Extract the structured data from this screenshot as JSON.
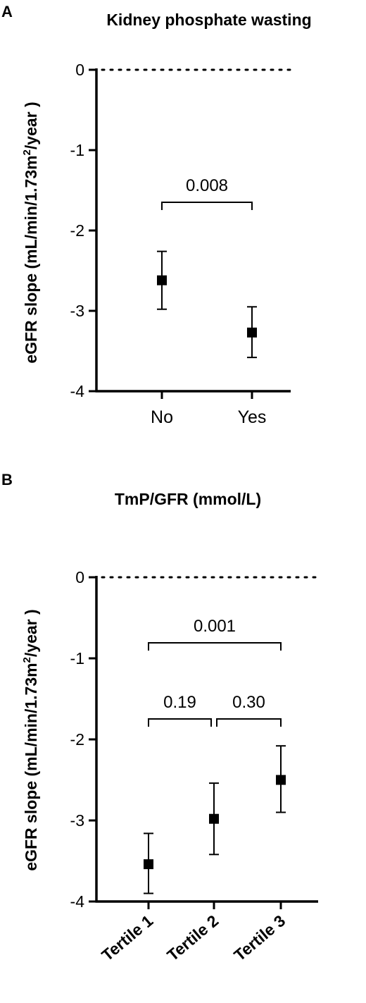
{
  "chart_data": [
    {
      "type": "scatter",
      "panel": "A",
      "title": "Kidney phosphate wasting",
      "ylabel": "eGFR slope (mL/min/1.73m²/year )",
      "ylim": [
        -4,
        0
      ],
      "yticks": [
        0,
        -1,
        -2,
        -3,
        -4
      ],
      "reference_line": 0,
      "categories": [
        "No",
        "Yes"
      ],
      "series": [
        {
          "values": [
            -2.62,
            -3.27
          ],
          "ci_low": [
            -2.98,
            -3.58
          ],
          "ci_high": [
            -2.26,
            -2.95
          ]
        }
      ],
      "comparisons": [
        {
          "from": 0,
          "to": 1,
          "label": "0.008"
        }
      ]
    },
    {
      "type": "scatter",
      "panel": "B",
      "title": "TmP/GFR (mmol/L)",
      "ylabel": "eGFR slope (mL/min/1.73m²/year )",
      "ylim": [
        -4,
        0
      ],
      "yticks": [
        0,
        -1,
        -2,
        -3,
        -4
      ],
      "reference_line": 0,
      "categories": [
        "Tertile 1",
        "Tertile 2",
        "Tertile 3"
      ],
      "series": [
        {
          "values": [
            -3.54,
            -2.98,
            -2.5
          ],
          "ci_low": [
            -3.9,
            -3.42,
            -2.9
          ],
          "ci_high": [
            -3.16,
            -2.54,
            -2.08
          ]
        }
      ],
      "comparisons": [
        {
          "from": 0,
          "to": 1,
          "label": "0.19"
        },
        {
          "from": 1,
          "to": 2,
          "label": "0.30"
        },
        {
          "from": 0,
          "to": 2,
          "label": "0.001"
        }
      ]
    }
  ]
}
